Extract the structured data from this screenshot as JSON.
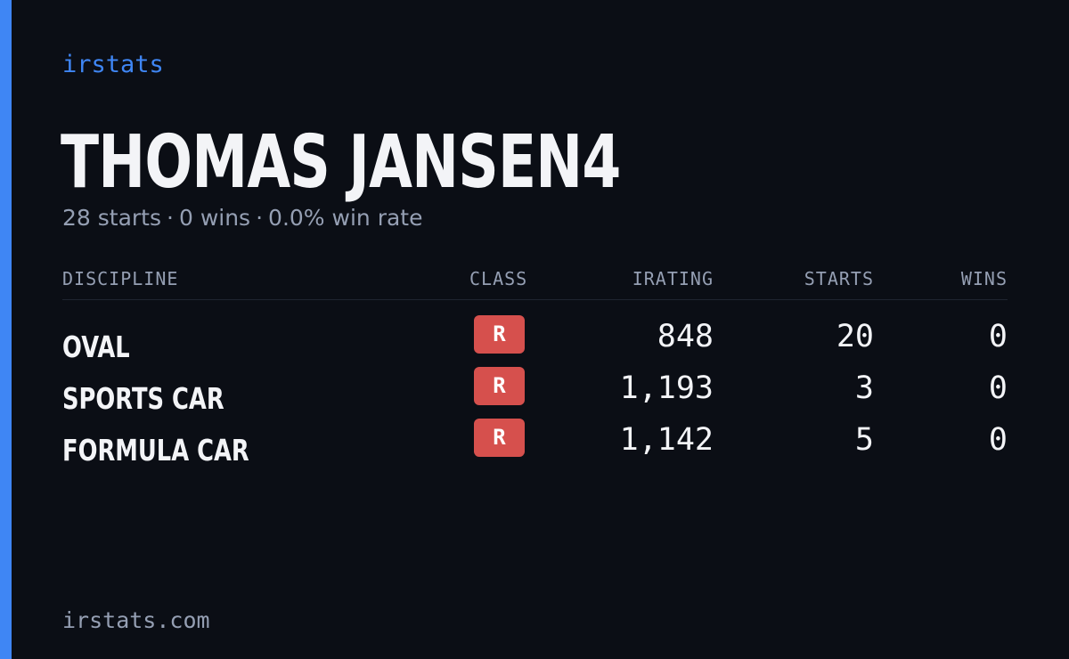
{
  "brand": "irstats",
  "driver": {
    "name": "THOMAS JANSEN4"
  },
  "summary": {
    "starts": "28 starts",
    "wins": "0 wins",
    "win_rate": "0.0% win rate",
    "separator": "·"
  },
  "table": {
    "headers": {
      "discipline": "DISCIPLINE",
      "class": "CLASS",
      "irating": "IRATING",
      "starts": "STARTS",
      "wins": "WINS"
    },
    "rows": [
      {
        "discipline": "OVAL",
        "class": "R",
        "irating": "848",
        "starts": "20",
        "wins": "0"
      },
      {
        "discipline": "SPORTS CAR",
        "class": "R",
        "irating": "1,193",
        "starts": "3",
        "wins": "0"
      },
      {
        "discipline": "FORMULA CAR",
        "class": "R",
        "irating": "1,142",
        "starts": "5",
        "wins": "0"
      }
    ]
  },
  "footer": "irstats.com",
  "colors": {
    "background": "#0b0e15",
    "accent": "#3f86f4",
    "class_r": "#d6504d",
    "text_primary": "#f3f4f7",
    "text_muted": "#959fb3"
  }
}
